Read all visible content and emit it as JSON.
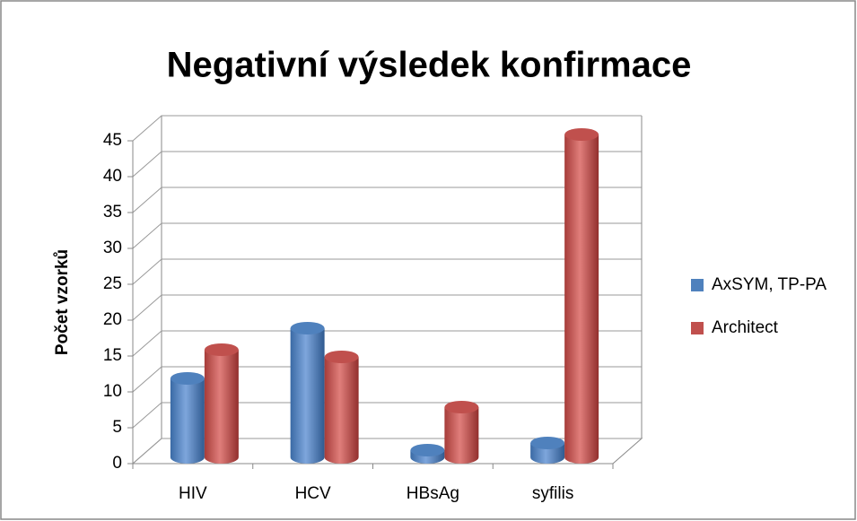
{
  "chart_data": {
    "type": "bar3d",
    "title": "Negativní výsledek konfirmace",
    "y_label": "Počet vzorků",
    "categories": [
      "HIV",
      "HCV",
      "HBsAg",
      "syfilis"
    ],
    "series": [
      {
        "name": "AxSYM, TP-PA",
        "color": "#4f81bd",
        "values": [
          11,
          18,
          1,
          2
        ]
      },
      {
        "name": "Architect",
        "color": "#c0504d",
        "values": [
          15,
          14,
          7,
          45
        ]
      }
    ],
    "ylim": [
      0,
      45
    ],
    "yticks": [
      0,
      5,
      10,
      15,
      20,
      25,
      30,
      35,
      40,
      45
    ],
    "grid": true,
    "legend": "right"
  }
}
